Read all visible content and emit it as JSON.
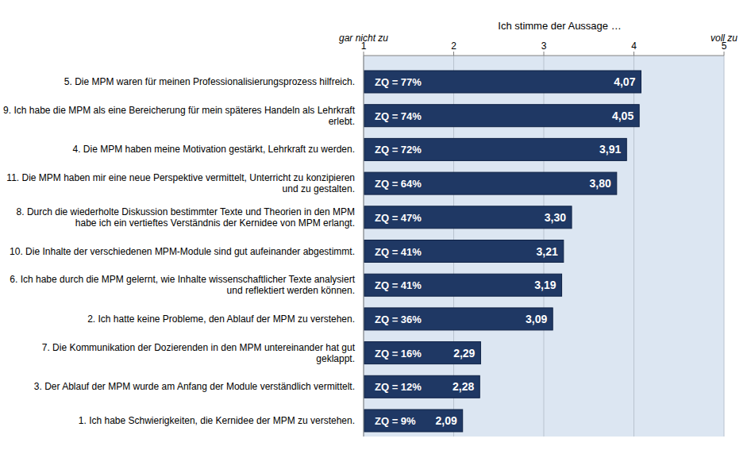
{
  "chart_data": {
    "type": "bar",
    "orientation": "horizontal",
    "x_label": "Ich stimme der Aussage …",
    "annotations": [
      {
        "text": "gar nicht zu",
        "x": 1
      },
      {
        "text": "voll zu",
        "x": 5
      }
    ],
    "categories": [
      "5. Die MPM waren für meinen Professionalisierungsprozess hilfreich.",
      "9. Ich habe die MPM als eine Bereicherung für mein späteres Handeln als Lehrkraft erlebt.",
      "4. Die MPM haben meine Motivation gestärkt, Lehrkraft zu werden.",
      "11. Die MPM haben mir eine neue Perspektive vermittelt, Unterricht zu konzipieren und zu gestalten.",
      "8. Durch die wiederholte Diskussion bestimmter Texte und Theorien in den MPM habe ich ein vertieftes Verständnis der Kernidee von MPM erlangt.",
      "10. Die Inhalte der verschiedenen MPM-Module sind gut aufeinander abgestimmt.",
      "6. Ich habe durch die MPM gelernt, wie Inhalte wissenschaftlicher Texte analysiert und reflektiert werden können.",
      "2. Ich hatte keine Probleme, den Ablauf der MPM zu verstehen.",
      "7. Die Kommunikation der Dozierenden in den MPM untereinander hat gut geklappt.",
      "3. Der Ablauf der MPM wurde am Anfang der Module verständlich vermittelt.",
      "1. Ich habe Schwierigkeiten, die Kernidee der MPM zu verstehen."
    ],
    "values": [
      4.07,
      4.05,
      3.91,
      3.8,
      3.3,
      3.21,
      3.19,
      3.09,
      2.29,
      2.28,
      2.09
    ],
    "value_labels": [
      "4,07",
      "4,05",
      "3,91",
      "3,80",
      "3,30",
      "3,21",
      "3,19",
      "3,09",
      "2,29",
      "2,28",
      "2,09"
    ],
    "zq": [
      77,
      74,
      72,
      64,
      47,
      41,
      41,
      36,
      16,
      12,
      9
    ],
    "zq_labels": [
      "ZQ = 77%",
      "ZQ = 74%",
      "ZQ = 72%",
      "ZQ = 64%",
      "ZQ = 47%",
      "ZQ = 41%",
      "ZQ = 41%",
      "ZQ = 36%",
      "ZQ = 16%",
      "ZQ = 12%",
      "ZQ = 9%"
    ],
    "color": "#1f3864",
    "data_labels": true,
    "xlim": [
      1,
      5
    ],
    "xticks": [
      1,
      2,
      3,
      4,
      5
    ],
    "grid": true
  }
}
